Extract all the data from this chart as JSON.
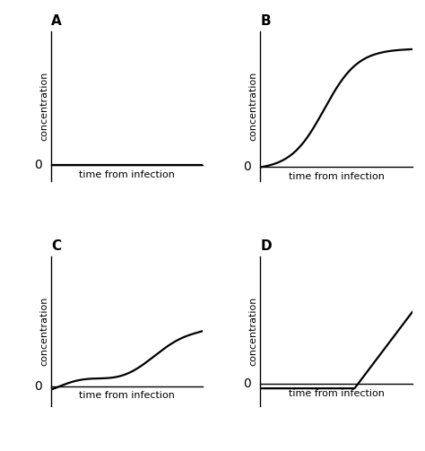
{
  "title_A": "A",
  "title_B": "B",
  "title_C": "C",
  "title_D": "D",
  "xlabel": "time from infection",
  "ylabel": "concentration",
  "background_color": "#ffffff",
  "line_color": "#000000",
  "panel_label_fontsize": 11,
  "axis_label_fontsize": 8,
  "zero_label_fontsize": 10,
  "line_width": 1.6
}
